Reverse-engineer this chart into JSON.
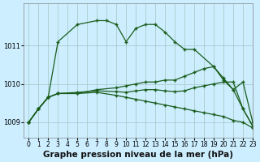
{
  "background_color": "#cceeff",
  "plot_bg_color": "#cceeff",
  "grid_color": "#aacccc",
  "line_color": "#1a5c1a",
  "title": "Graphe pression niveau de la mer (hPa)",
  "xlabel_fontsize": 7.5,
  "xlim": [
    -0.5,
    23
  ],
  "ylim": [
    1008.6,
    1012.1
  ],
  "yticks": [
    1009,
    1010,
    1011
  ],
  "xticks": [
    0,
    1,
    2,
    3,
    4,
    5,
    6,
    7,
    8,
    9,
    10,
    11,
    12,
    13,
    14,
    15,
    16,
    17,
    18,
    19,
    20,
    21,
    22,
    23
  ],
  "series": [
    {
      "x": [
        0,
        1,
        2,
        3,
        5,
        7,
        8,
        9,
        10,
        11,
        12,
        13,
        14,
        15,
        16,
        17,
        19,
        20,
        21,
        22,
        23
      ],
      "y": [
        1009.0,
        1009.35,
        1009.65,
        1011.1,
        1011.55,
        1011.65,
        1011.65,
        1011.55,
        1011.1,
        1011.45,
        1011.55,
        1011.55,
        1011.35,
        1011.1,
        1010.9,
        1010.9,
        1010.45,
        1010.1,
        1009.85,
        1010.05,
        1009.0
      ]
    },
    {
      "x": [
        0,
        1,
        2,
        3,
        5,
        7,
        9,
        10,
        11,
        12,
        13,
        14,
        15,
        16,
        17,
        18,
        19,
        20,
        21,
        22,
        23
      ],
      "y": [
        1009.0,
        1009.35,
        1009.65,
        1009.75,
        1009.75,
        1009.85,
        1009.9,
        1009.95,
        1010.0,
        1010.05,
        1010.05,
        1010.1,
        1010.1,
        1010.2,
        1010.3,
        1010.4,
        1010.45,
        1010.15,
        1009.85,
        1009.35,
        1008.9
      ]
    },
    {
      "x": [
        0,
        1,
        2,
        3,
        5,
        7,
        9,
        10,
        11,
        12,
        13,
        14,
        15,
        16,
        17,
        18,
        19,
        20,
        21,
        22,
        23
      ],
      "y": [
        1009.0,
        1009.35,
        1009.65,
        1009.75,
        1009.78,
        1009.82,
        1009.8,
        1009.78,
        1009.82,
        1009.85,
        1009.85,
        1009.82,
        1009.8,
        1009.82,
        1009.9,
        1009.95,
        1010.0,
        1010.05,
        1010.05,
        1009.35,
        1008.9
      ]
    },
    {
      "x": [
        0,
        1,
        2,
        3,
        5,
        7,
        9,
        10,
        11,
        12,
        13,
        14,
        15,
        16,
        17,
        18,
        19,
        20,
        21,
        22,
        23
      ],
      "y": [
        1009.0,
        1009.35,
        1009.65,
        1009.75,
        1009.75,
        1009.78,
        1009.7,
        1009.65,
        1009.6,
        1009.55,
        1009.5,
        1009.45,
        1009.4,
        1009.35,
        1009.3,
        1009.25,
        1009.2,
        1009.15,
        1009.05,
        1009.0,
        1008.85
      ]
    }
  ]
}
